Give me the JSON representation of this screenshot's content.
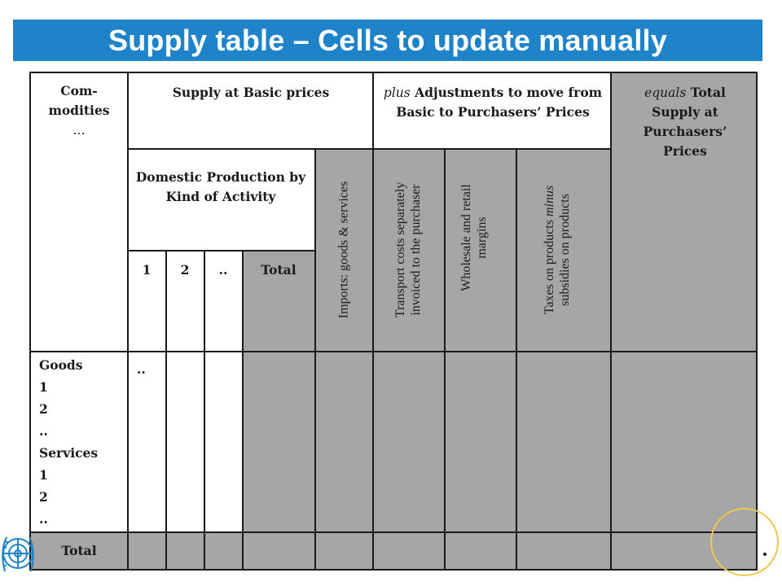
{
  "title": "Supply table – Cells to update manually",
  "header": {
    "commodities": [
      "Com-",
      "modities",
      "…"
    ],
    "supply_basic": "Supply at Basic prices",
    "adjustments_plus": "plus",
    "adjustments_rest": " Adjustments to move from Basic to Purchasers’ Prices",
    "total_equals": "equals",
    "total_rest": " Total Supply at Purchasers’ Prices",
    "domestic_production": "Domestic  Production by Kind of Activity",
    "activity_1": "1",
    "activity_2": "2",
    "activity_more": "..",
    "activity_total": "Total",
    "imports": "Imports: goods & services",
    "transport": [
      "Transport costs separately",
      "invoiced to the purchaser"
    ],
    "margins": [
      "Wholesale and retail",
      "margins"
    ],
    "taxes_a": "Taxes on products ",
    "taxes_minus": "minus",
    "taxes_b": "subsidies on products"
  },
  "rows": {
    "labels": [
      "Goods",
      "1",
      "2",
      "..",
      "Services",
      "1",
      "2",
      ".."
    ],
    "first_cell": "..",
    "total": "Total"
  },
  "colors": {
    "banner": "#1e83c8",
    "shaded_cell": "#a6a6a6",
    "grid_line": "#1a1a1a"
  }
}
